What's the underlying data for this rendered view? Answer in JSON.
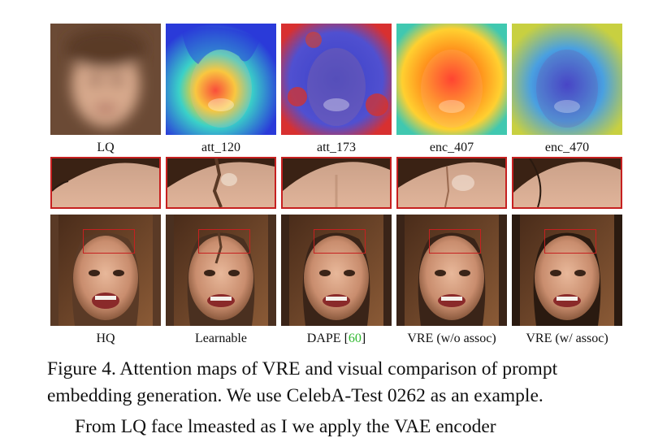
{
  "figure": {
    "top_labels": [
      "LQ",
      "att_120",
      "att_173",
      "enc_407",
      "enc_470"
    ],
    "bottom_labels": {
      "hq": "HQ",
      "learnable": "Learnable",
      "dape_prefix": "DAPE [",
      "dape_ref": "60",
      "dape_suffix": "]",
      "vre_wo": "VRE (w/o assoc)",
      "vre_w": "VRE (w/ assoc)"
    },
    "caption": "Figure 4. Attention maps of VRE and visual comparison of prompt embedding generation. We use CelebA-Test 0262 as an example.",
    "cutoff_text": "From LQ face lmeasted as I we apply the VAE encoder",
    "colors": {
      "roi_box": "#c62020",
      "citation": "#2db82d"
    }
  }
}
